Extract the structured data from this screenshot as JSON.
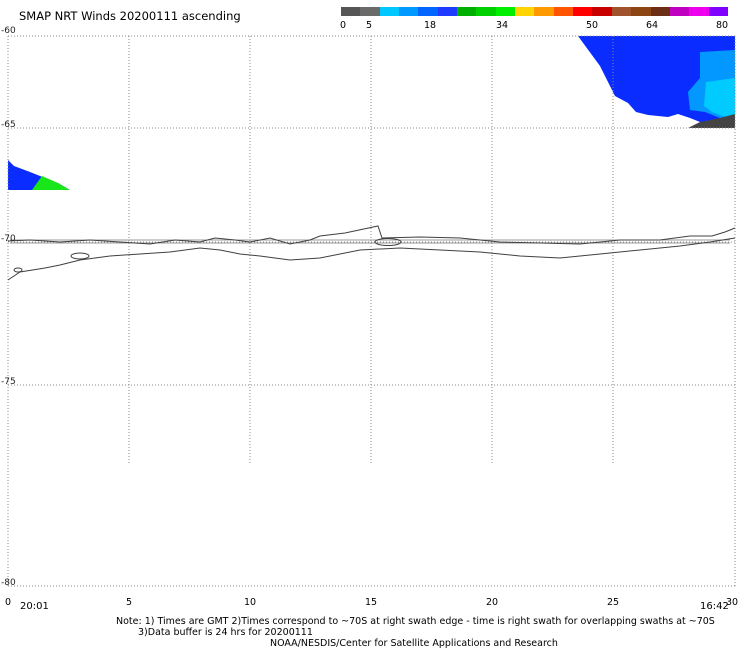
{
  "title": "SMAP NRT Winds 20200111 ascending",
  "legend": {
    "labels": [
      "0",
      "5",
      "18",
      "34",
      "50",
      "64",
      "80"
    ],
    "colors": [
      "#555555",
      "#6a6a6a",
      "#00c8ff",
      "#0099ff",
      "#0066ff",
      "#1f3bff",
      "#00b000",
      "#00d000",
      "#00ee00",
      "#ffd400",
      "#ff9900",
      "#ff5500",
      "#ff0000",
      "#c80000",
      "#a0522d",
      "#8b4513",
      "#6b2e14",
      "#c000c0",
      "#ee00ee",
      "#8000ff"
    ]
  },
  "y_axis": {
    "labels": [
      "-60",
      "-65",
      "-70",
      "-75",
      "-80"
    ]
  },
  "x_axis": {
    "labels": [
      "0",
      "5",
      "10",
      "15",
      "20",
      "25",
      "30"
    ]
  },
  "times": {
    "left": "20:01",
    "right": "16:42"
  },
  "notes": {
    "line1": "Note: 1) Times are GMT 2)Times correspond to ~70S at right swath edge - time is right swath for overlapping swaths at ~70S",
    "line2": "3)Data buffer is 24 hrs for 20200111",
    "line3": "NOAA/NESDIS/Center for Satellite Applications and Research"
  },
  "colors": {
    "wind_blue": "#0a2cff",
    "wind_cyan": "#00d0ff",
    "wind_green": "#19e619",
    "land_dark": "#444444",
    "coast": "#404040"
  }
}
